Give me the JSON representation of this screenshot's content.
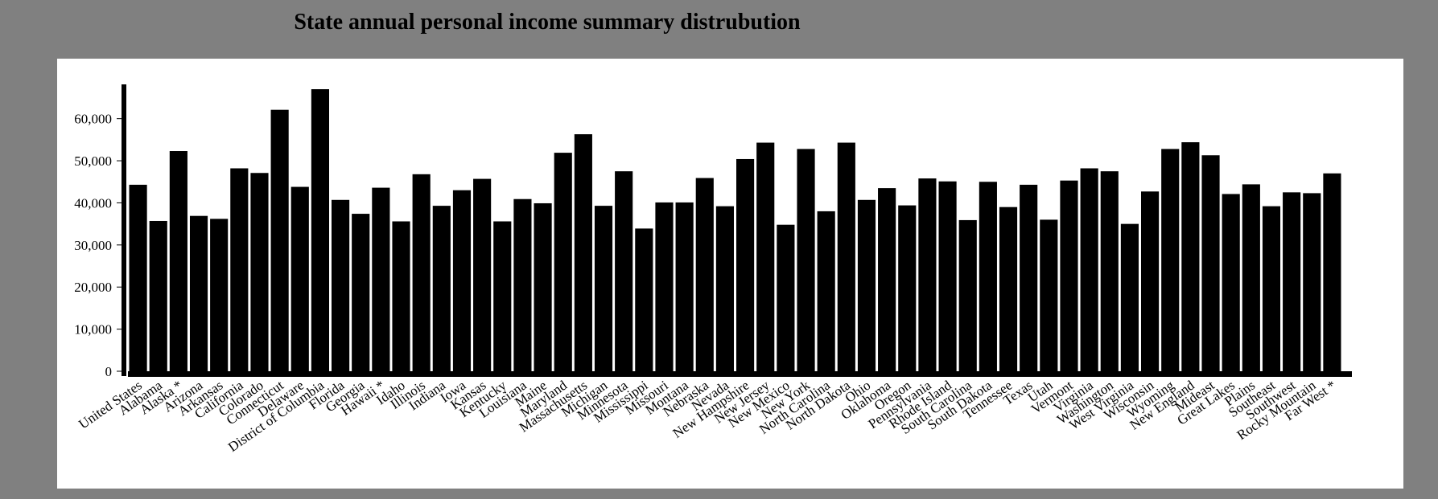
{
  "chart_data": {
    "type": "bar",
    "title": "State annual personal income summary distrubution",
    "xlabel": "",
    "ylabel": "",
    "ylim": [
      0,
      67000
    ],
    "yticks": [
      0,
      10000,
      20000,
      30000,
      40000,
      50000,
      60000
    ],
    "ytick_labels": [
      "0",
      "10,000",
      "20,000",
      "30,000",
      "40,000",
      "50,000",
      "60,000"
    ],
    "bar_color": "#000000",
    "grid": false,
    "categories": [
      "United States",
      "Alabama",
      "Alaska *",
      "Arizona",
      "Arkansas",
      "California",
      "Colorado",
      "Connecticut",
      "Delaware",
      "District of Columbia",
      "Florida",
      "Georgia",
      "Hawaii *",
      "Idaho",
      "Illinois",
      "Indiana",
      "Iowa",
      "Kansas",
      "Kentucky",
      "Louisiana",
      "Maine",
      "Maryland",
      "Massachusetts",
      "Michigan",
      "Minnesota",
      "Mississippi",
      "Missouri",
      "Montana",
      "Nebraska",
      "Nevada",
      "New Hampshire",
      "New Jersey",
      "New Mexico",
      "New York",
      "North Carolina",
      "North Dakota",
      "Ohio",
      "Oklahoma",
      "Oregon",
      "Pennsylvania",
      "Rhode Island",
      "South Carolina",
      "South Dakota",
      "Tennessee",
      "Texas",
      "Utah",
      "Vermont",
      "Virginia",
      "Washington",
      "West Virginia",
      "Wisconsin",
      "Wyoming",
      "New England",
      "Mideast",
      "Great Lakes",
      "Plains",
      "Southeast",
      "Southwest",
      "Rocky Mountain",
      "Far West *"
    ],
    "values": [
      44300,
      35700,
      52300,
      36900,
      36200,
      48200,
      47100,
      62100,
      43800,
      67000,
      40700,
      37400,
      43600,
      35600,
      46800,
      39300,
      43000,
      45700,
      35600,
      40900,
      39900,
      51900,
      56300,
      39300,
      47500,
      33900,
      40100,
      40100,
      45900,
      39200,
      50400,
      54300,
      34800,
      52800,
      38000,
      54300,
      40700,
      43500,
      39400,
      45800,
      45100,
      35900,
      45000,
      39000,
      44300,
      36000,
      45300,
      48200,
      47500,
      35000,
      42700,
      52800,
      54400,
      51300,
      42100,
      44400,
      39200,
      42500,
      42300,
      47000
    ]
  }
}
